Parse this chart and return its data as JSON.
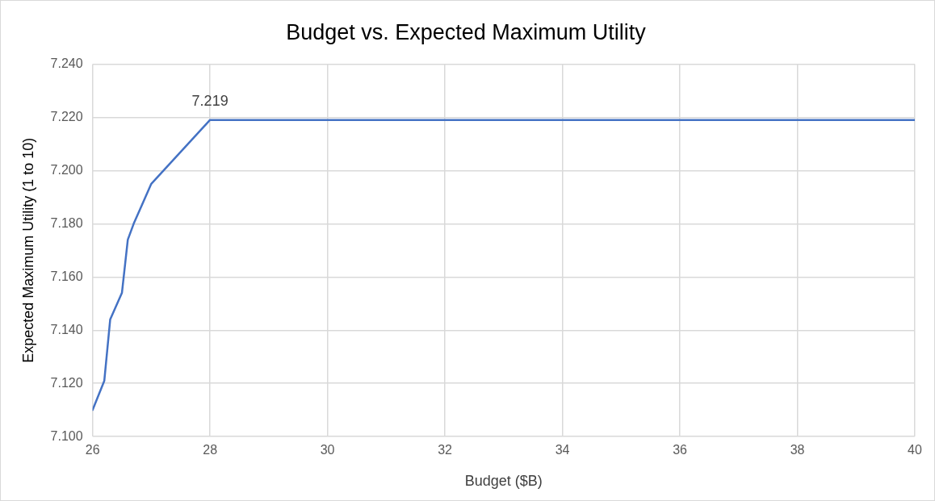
{
  "chart_data": {
    "type": "line",
    "title": "Budget vs. Expected Maximum Utility",
    "xlabel": "Budget ($B)",
    "ylabel": "Expected Maximum Utility (1 to 10)",
    "x": [
      26,
      26.2,
      26.3,
      26.5,
      26.6,
      26.7,
      27,
      28,
      40
    ],
    "series": [
      {
        "color": "#4472c4",
        "values": [
          7.11,
          7.121,
          7.144,
          7.154,
          7.174,
          7.18,
          7.195,
          7.219,
          7.219
        ]
      }
    ],
    "xlim": [
      26,
      40
    ],
    "xticks": [
      26,
      28,
      30,
      32,
      34,
      36,
      38,
      40
    ],
    "ylim": [
      7.1,
      7.24
    ],
    "yticks": [
      {
        "value": 7.1,
        "label": "7.100"
      },
      {
        "value": 7.12,
        "label": "7.120"
      },
      {
        "value": 7.14,
        "label": "7.140"
      },
      {
        "value": 7.16,
        "label": "7.160"
      },
      {
        "value": 7.18,
        "label": "7.180"
      },
      {
        "value": 7.2,
        "label": "7.200"
      },
      {
        "value": 7.22,
        "label": "7.220"
      },
      {
        "value": 7.24,
        "label": "7.240"
      }
    ],
    "annotations": [
      {
        "text": "7.219",
        "x": 28,
        "y": 7.219
      }
    ],
    "grid": true,
    "legend": false,
    "marker": "none",
    "line_style": "solid"
  }
}
